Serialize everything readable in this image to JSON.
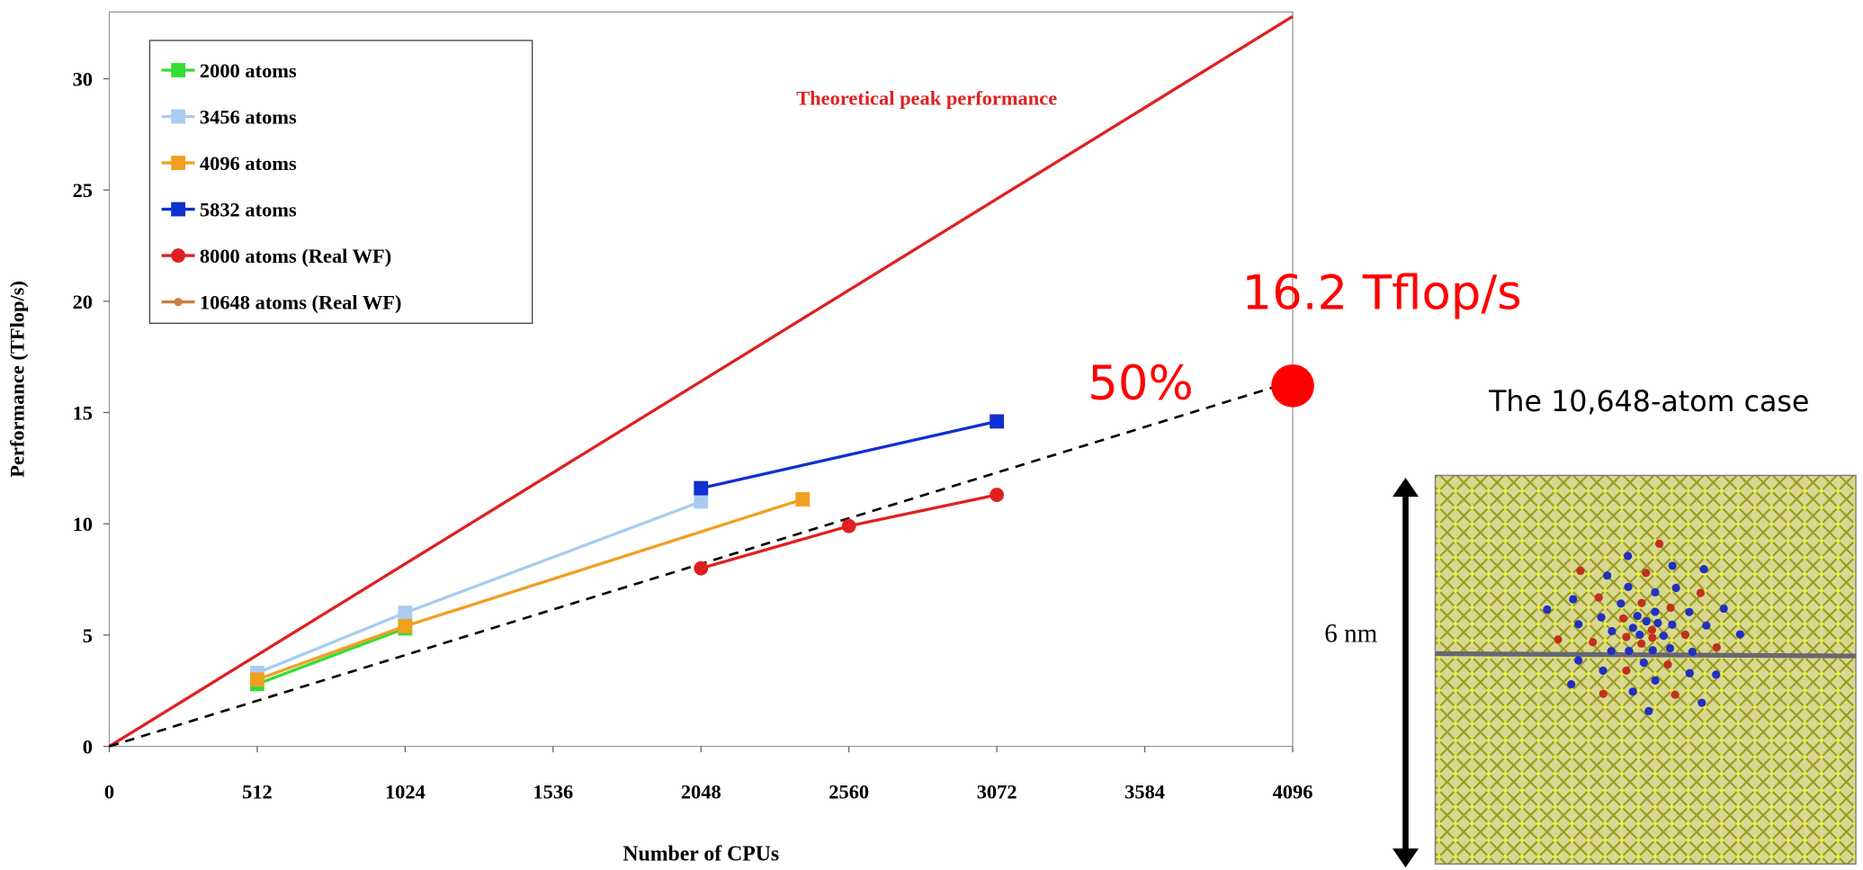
{
  "chart_data": {
    "type": "line",
    "y_label": "Performance (TFlop/s)",
    "x_label": "Number of CPUs",
    "xlim": [
      0,
      4096
    ],
    "ylim": [
      0,
      33
    ],
    "xticks": [
      0,
      512,
      1024,
      1536,
      2048,
      2560,
      3072,
      3584,
      4096
    ],
    "yticks": [
      0,
      5,
      10,
      15,
      20,
      25,
      30
    ],
    "legend": "upper-left",
    "series": [
      {
        "name": "2000 atoms",
        "color": "#33dd33",
        "marker": "square",
        "x": [
          512,
          1024
        ],
        "values": [
          2.8,
          5.3
        ]
      },
      {
        "name": "3456 atoms",
        "color": "#a8ccef",
        "marker": "square",
        "x": [
          512,
          1024,
          2048
        ],
        "values": [
          3.3,
          6.0,
          11.0
        ]
      },
      {
        "name": "4096 atoms",
        "color": "#f0a020",
        "marker": "square",
        "x": [
          512,
          1024,
          2400
        ],
        "values": [
          3.0,
          5.4,
          11.1
        ]
      },
      {
        "name": "5832 atoms",
        "color": "#1030d0",
        "marker": "square",
        "x": [
          2048,
          3072
        ],
        "values": [
          11.6,
          14.6
        ]
      },
      {
        "name": "8000 atoms (Real WF)",
        "color": "#e02020",
        "marker": "circle",
        "x": [
          2048,
          2560,
          3072
        ],
        "values": [
          8.0,
          9.9,
          11.3
        ]
      },
      {
        "name": "10648 atoms (Real WF)",
        "color": "#c88040",
        "point_color": "#ff0000",
        "marker": "circle",
        "x": [
          4096
        ],
        "values": [
          16.2
        ]
      }
    ],
    "reference_lines": [
      {
        "name": "Theoretical peak performance",
        "color": "#e02020",
        "style": "solid",
        "x": [
          0,
          4096
        ],
        "values": [
          0,
          32.8
        ]
      },
      {
        "color": "#000000",
        "style": "dashed",
        "x": [
          0,
          4096
        ],
        "values": [
          0,
          16.4
        ]
      }
    ],
    "annotations": [
      "16.2 Tflop/s",
      "50%"
    ]
  },
  "image": {
    "caption": "The 10,648-atom case",
    "scale_label": "6 nm"
  }
}
